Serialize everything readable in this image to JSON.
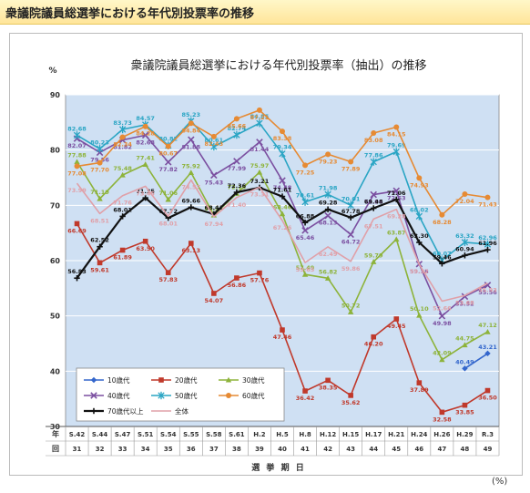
{
  "header": {
    "title": "衆議院議員総選挙における年代別投票率の推移"
  },
  "unit_note": "(%)",
  "chart_data": {
    "type": "line",
    "title": "衆議院議員総選挙における年代別投票率（抽出）の推移",
    "ylabel": "%",
    "xlabel": "選 挙 期 日",
    "x_row_label": "年",
    "x2_row_label": "回",
    "ylim": [
      30,
      90
    ],
    "yticks": [
      30,
      40,
      50,
      60,
      70,
      80,
      90
    ],
    "grid": true,
    "legend_position": "bottom-left",
    "categories": [
      "S.42",
      "S.44",
      "S.47",
      "S.51",
      "S.54",
      "S.55",
      "S.58",
      "S.61",
      "H.2",
      "H.5",
      "H.8",
      "H.12",
      "H.15",
      "H.17",
      "H.21",
      "H.24",
      "H.26",
      "H.29",
      "R.3"
    ],
    "categories2": [
      "31",
      "32",
      "33",
      "34",
      "35",
      "36",
      "37",
      "38",
      "39",
      "40",
      "41",
      "42",
      "43",
      "44",
      "45",
      "46",
      "47",
      "48",
      "49"
    ],
    "series": [
      {
        "name": "10歳代",
        "color": "#3366cc",
        "marker": "diamond",
        "values": [
          null,
          null,
          null,
          null,
          null,
          null,
          null,
          null,
          null,
          null,
          null,
          null,
          null,
          null,
          null,
          null,
          null,
          40.49,
          43.21
        ]
      },
      {
        "name": "20歳代",
        "color": "#c0392b",
        "marker": "square",
        "values": [
          66.69,
          59.61,
          61.89,
          63.5,
          57.83,
          63.13,
          54.07,
          56.86,
          57.76,
          47.46,
          36.42,
          38.35,
          35.62,
          46.2,
          49.45,
          37.89,
          32.58,
          33.85,
          36.5
        ]
      },
      {
        "name": "30歳代",
        "color": "#8db33a",
        "marker": "triangle",
        "values": [
          77.88,
          71.19,
          75.48,
          77.41,
          71.06,
          75.92,
          68.24,
          72.15,
          75.97,
          68.46,
          57.49,
          56.82,
          50.72,
          59.79,
          63.87,
          50.1,
          42.09,
          44.75,
          47.12
        ]
      },
      {
        "name": "40歳代",
        "color": "#7b4fa0",
        "marker": "x",
        "values": [
          82.07,
          79.56,
          81.82,
          82.68,
          77.82,
          81.88,
          75.43,
          77.99,
          81.44,
          74.48,
          65.46,
          68.13,
          64.72,
          71.94,
          72.63,
          59.38,
          49.98,
          53.52,
          55.56
        ]
      },
      {
        "name": "50歳代",
        "color": "#2aa5c4",
        "marker": "star",
        "values": [
          82.68,
          80.23,
          83.73,
          84.57,
          80.82,
          85.23,
          80.61,
          82.74,
          84.85,
          79.34,
          70.61,
          71.98,
          70.01,
          77.86,
          79.69,
          68.02,
          60.07,
          63.32,
          62.96
        ]
      },
      {
        "name": "60歳代",
        "color": "#e68a33",
        "marker": "circle",
        "values": [
          77.08,
          77.7,
          82.34,
          84.28,
          80.67,
          84.84,
          82.43,
          85.66,
          87.21,
          83.38,
          77.25,
          79.23,
          77.89,
          83.08,
          84.15,
          74.93,
          68.28,
          72.04,
          71.43
        ]
      },
      {
        "name": "70歳代以上",
        "color": "#111111",
        "marker": "plus",
        "values": [
          56.83,
          62.52,
          68.01,
          71.35,
          67.72,
          69.66,
          68.41,
          72.36,
          73.21,
          71.61,
          66.88,
          69.28,
          67.78,
          69.48,
          71.06,
          63.3,
          59.46,
          60.94,
          61.96
        ]
      },
      {
        "name": "全体",
        "color": "#e0a0a8",
        "marker": "none",
        "values": [
          73.99,
          68.51,
          71.76,
          73.45,
          68.01,
          74.57,
          67.94,
          71.4,
          73.31,
          67.26,
          59.65,
          62.49,
          59.86,
          67.51,
          69.28,
          59.32,
          52.66,
          53.68,
          55.93
        ]
      }
    ]
  }
}
